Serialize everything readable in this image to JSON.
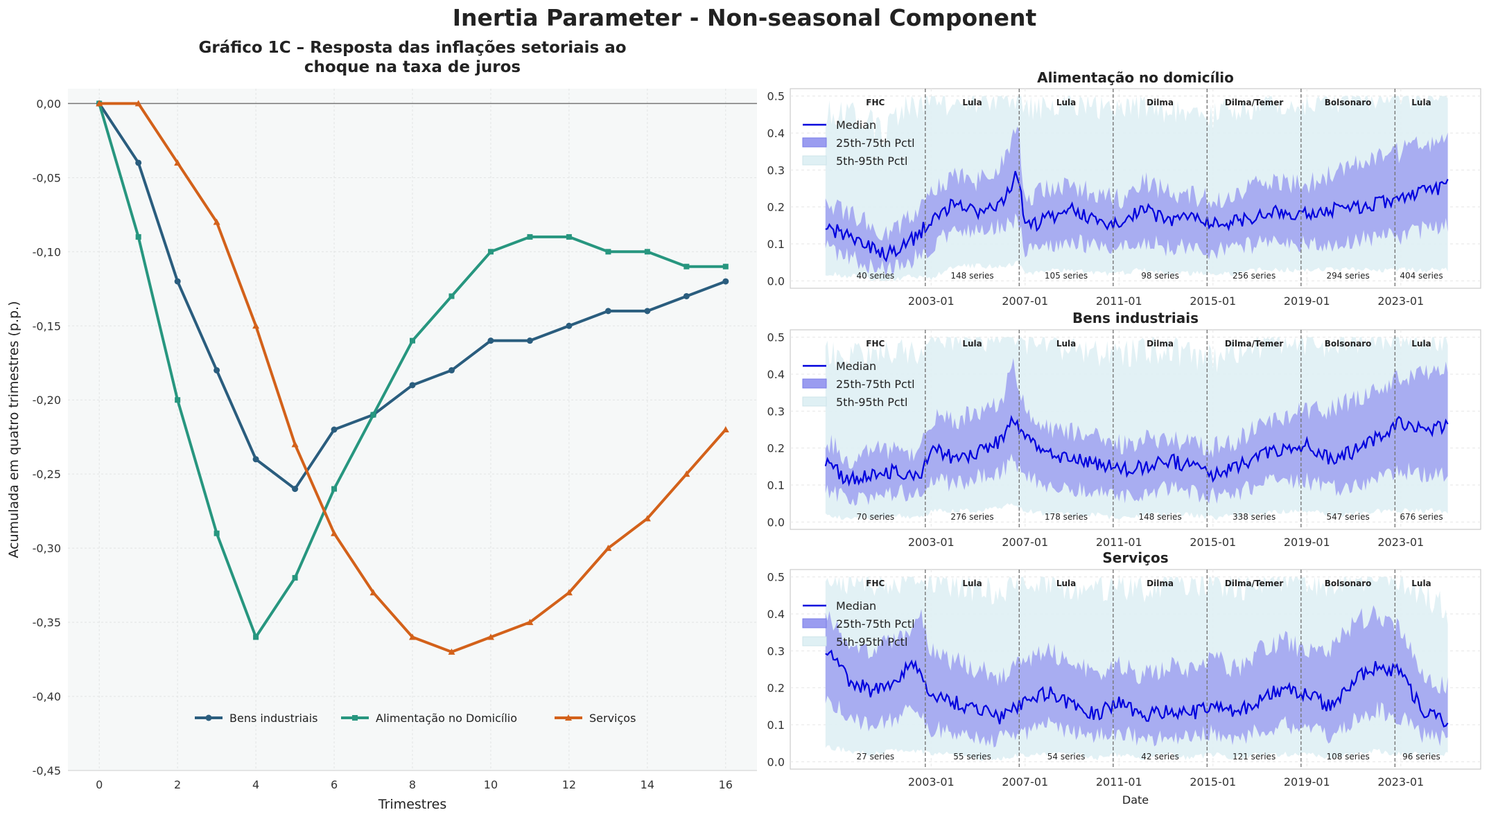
{
  "main_title": "Inertia Parameter - Non-seasonal Component",
  "colors": {
    "bens": "#2a5d7e",
    "alimentacao": "#27967f",
    "servicos": "#d3611a",
    "median": "#0000dd",
    "iqr": "#9a9cf0",
    "band90": "#dff0f4",
    "panel_bg": "#f6f8f8",
    "vline": "#777777"
  },
  "chart_data": [
    {
      "type": "line",
      "title": "Gráfico 1C – Resposta das inflações setoriais ao\nchoque na taxa de juros",
      "xlabel": "Trimestres",
      "ylabel": "Acumulada em quatro trimestres (p.p.)",
      "xlim": [
        -0.8,
        16.8
      ],
      "ylim": [
        -0.45,
        0.01
      ],
      "xticks": [
        0,
        2,
        4,
        6,
        8,
        10,
        12,
        14,
        16
      ],
      "yticks": [
        "0,00",
        "-0,05",
        "-0,10",
        "-0,15",
        "-0,20",
        "-0,25",
        "-0,30",
        "-0,35",
        "-0,40",
        "-0,45"
      ],
      "ytick_values": [
        0,
        -0.05,
        -0.1,
        -0.15,
        -0.2,
        -0.25,
        -0.3,
        -0.35,
        -0.4,
        -0.45
      ],
      "legend_position": "lower-center",
      "grid": true,
      "x": [
        0,
        1,
        2,
        3,
        4,
        5,
        6,
        7,
        8,
        9,
        10,
        11,
        12,
        13,
        14,
        15,
        16
      ],
      "series": [
        {
          "name": "Bens industriais",
          "color_key": "bens",
          "marker": "circle",
          "values": [
            0,
            -0.04,
            -0.12,
            -0.18,
            -0.24,
            -0.26,
            -0.22,
            -0.21,
            -0.19,
            -0.18,
            -0.16,
            -0.16,
            -0.15,
            -0.14,
            -0.14,
            -0.13,
            -0.12
          ]
        },
        {
          "name": "Alimentação no Domicílio",
          "color_key": "alimentacao",
          "marker": "square",
          "values": [
            0,
            -0.09,
            -0.2,
            -0.29,
            -0.36,
            -0.32,
            -0.26,
            -0.21,
            -0.16,
            -0.13,
            -0.1,
            -0.09,
            -0.09,
            -0.1,
            -0.1,
            -0.11,
            -0.11
          ]
        },
        {
          "name": "Serviços",
          "color_key": "servicos",
          "marker": "triangle",
          "values": [
            0,
            0,
            -0.04,
            -0.08,
            -0.15,
            -0.23,
            -0.29,
            -0.33,
            -0.36,
            -0.37,
            -0.36,
            -0.35,
            -0.33,
            -0.3,
            -0.28,
            -0.25,
            -0.22
          ]
        }
      ]
    },
    {
      "type": "area",
      "panel": "top",
      "title": "Alimentação no domicílio",
      "xlabel": "",
      "xlim": [
        1997.0,
        2026.4
      ],
      "ylim": [
        -0.02,
        0.52
      ],
      "yticks": [
        0.0,
        0.1,
        0.2,
        0.3,
        0.4,
        0.5
      ],
      "xticks": [
        "2003-01",
        "2007-01",
        "2011-01",
        "2015-01",
        "2019-01",
        "2023-01"
      ],
      "xtick_values": [
        2003.0,
        2007.0,
        2011.0,
        2015.0,
        2019.0,
        2023.0
      ],
      "era_boundaries": [
        2002.75,
        2006.75,
        2010.75,
        2014.75,
        2018.75,
        2022.75
      ],
      "eras": [
        "FHC",
        "Lula",
        "Lula",
        "Dilma",
        "Dilma/Temer",
        "Bolsonaro",
        "Lula"
      ],
      "era_counts": [
        "40 series",
        "148 series",
        "105 series",
        "98 series",
        "256 series",
        "294 series",
        "404 series"
      ],
      "legend": [
        "Median",
        "25th-75th Pctl",
        "5th-95th Pctl"
      ],
      "x": [
        1998.5,
        2000.0,
        2001.0,
        2002.0,
        2003.0,
        2004.0,
        2005.0,
        2006.0,
        2006.7,
        2007.0,
        2008.0,
        2009.0,
        2010.0,
        2011.0,
        2012.0,
        2013.0,
        2014.0,
        2015.0,
        2016.0,
        2017.0,
        2018.0,
        2019.0,
        2020.0,
        2021.0,
        2022.0,
        2023.0,
        2024.0,
        2025.0
      ],
      "median": [
        0.15,
        0.1,
        0.07,
        0.1,
        0.16,
        0.21,
        0.19,
        0.21,
        0.29,
        0.14,
        0.17,
        0.19,
        0.16,
        0.15,
        0.2,
        0.16,
        0.17,
        0.15,
        0.16,
        0.18,
        0.19,
        0.18,
        0.19,
        0.2,
        0.21,
        0.22,
        0.24,
        0.26
      ],
      "p25": [
        0.09,
        0.05,
        0.03,
        0.05,
        0.09,
        0.14,
        0.13,
        0.15,
        0.17,
        0.08,
        0.1,
        0.11,
        0.09,
        0.08,
        0.11,
        0.09,
        0.09,
        0.08,
        0.09,
        0.1,
        0.1,
        0.1,
        0.1,
        0.11,
        0.12,
        0.12,
        0.14,
        0.15
      ],
      "p75": [
        0.21,
        0.17,
        0.12,
        0.17,
        0.24,
        0.28,
        0.27,
        0.31,
        0.42,
        0.22,
        0.25,
        0.26,
        0.23,
        0.22,
        0.27,
        0.24,
        0.23,
        0.22,
        0.24,
        0.26,
        0.27,
        0.26,
        0.29,
        0.32,
        0.33,
        0.35,
        0.37,
        0.4
      ],
      "p05": [
        0.02,
        0.01,
        0.0,
        0.01,
        0.01,
        0.04,
        0.04,
        0.04,
        0.05,
        0.02,
        0.03,
        0.03,
        0.02,
        0.02,
        0.03,
        0.02,
        0.02,
        0.02,
        0.02,
        0.03,
        0.03,
        0.03,
        0.03,
        0.03,
        0.03,
        0.03,
        0.03,
        0.03
      ],
      "p95": [
        0.45,
        0.45,
        0.4,
        0.47,
        0.48,
        0.49,
        0.49,
        0.5,
        0.5,
        0.47,
        0.48,
        0.49,
        0.47,
        0.45,
        0.48,
        0.46,
        0.45,
        0.44,
        0.47,
        0.48,
        0.48,
        0.48,
        0.49,
        0.5,
        0.5,
        0.5,
        0.5,
        0.5
      ]
    },
    {
      "type": "area",
      "panel": "middle",
      "title": "Bens industriais",
      "xlabel": "",
      "xlim": [
        1997.0,
        2026.4
      ],
      "ylim": [
        -0.02,
        0.52
      ],
      "yticks": [
        0.0,
        0.1,
        0.2,
        0.3,
        0.4,
        0.5
      ],
      "xticks": [
        "2003-01",
        "2007-01",
        "2011-01",
        "2015-01",
        "2019-01",
        "2023-01"
      ],
      "xtick_values": [
        2003.0,
        2007.0,
        2011.0,
        2015.0,
        2019.0,
        2023.0
      ],
      "era_boundaries": [
        2002.75,
        2006.75,
        2010.75,
        2014.75,
        2018.75,
        2022.75
      ],
      "eras": [
        "FHC",
        "Lula",
        "Lula",
        "Dilma",
        "Dilma/Temer",
        "Bolsonaro",
        "Lula"
      ],
      "era_counts": [
        "70 series",
        "276 series",
        "178 series",
        "148 series",
        "338 series",
        "547 series",
        "676 series"
      ],
      "legend": [
        "Median",
        "25th-75th Pctl",
        "5th-95th Pctl"
      ],
      "x": [
        1998.5,
        1999.5,
        2000.5,
        2001.5,
        2002.5,
        2003.0,
        2004.0,
        2005.0,
        2006.0,
        2006.5,
        2007.0,
        2008.0,
        2009.0,
        2010.0,
        2011.0,
        2012.0,
        2013.0,
        2014.0,
        2015.0,
        2016.0,
        2017.0,
        2018.0,
        2019.0,
        2020.0,
        2021.0,
        2022.0,
        2023.0,
        2024.0,
        2025.0
      ],
      "median": [
        0.16,
        0.11,
        0.13,
        0.14,
        0.12,
        0.2,
        0.17,
        0.19,
        0.22,
        0.28,
        0.23,
        0.19,
        0.17,
        0.16,
        0.14,
        0.15,
        0.17,
        0.15,
        0.13,
        0.15,
        0.18,
        0.2,
        0.21,
        0.17,
        0.19,
        0.23,
        0.27,
        0.25,
        0.26
      ],
      "p25": [
        0.09,
        0.06,
        0.07,
        0.08,
        0.07,
        0.12,
        0.1,
        0.12,
        0.14,
        0.17,
        0.13,
        0.1,
        0.09,
        0.08,
        0.07,
        0.08,
        0.09,
        0.08,
        0.07,
        0.08,
        0.1,
        0.11,
        0.11,
        0.09,
        0.1,
        0.12,
        0.14,
        0.13,
        0.13
      ],
      "p75": [
        0.22,
        0.17,
        0.19,
        0.2,
        0.18,
        0.28,
        0.27,
        0.3,
        0.33,
        0.42,
        0.3,
        0.26,
        0.24,
        0.23,
        0.21,
        0.22,
        0.23,
        0.21,
        0.2,
        0.22,
        0.26,
        0.28,
        0.3,
        0.3,
        0.33,
        0.36,
        0.39,
        0.4,
        0.42
      ],
      "p05": [
        0.02,
        0.01,
        0.01,
        0.02,
        0.01,
        0.03,
        0.03,
        0.03,
        0.04,
        0.05,
        0.03,
        0.02,
        0.02,
        0.02,
        0.01,
        0.02,
        0.02,
        0.02,
        0.01,
        0.02,
        0.02,
        0.03,
        0.03,
        0.02,
        0.02,
        0.03,
        0.03,
        0.03,
        0.03
      ],
      "p95": [
        0.46,
        0.44,
        0.46,
        0.47,
        0.45,
        0.49,
        0.5,
        0.5,
        0.5,
        0.5,
        0.49,
        0.48,
        0.47,
        0.46,
        0.45,
        0.46,
        0.47,
        0.45,
        0.44,
        0.46,
        0.48,
        0.49,
        0.49,
        0.48,
        0.49,
        0.5,
        0.5,
        0.5,
        0.5
      ]
    },
    {
      "type": "area",
      "panel": "bottom",
      "title": "Serviços",
      "xlabel": "Date",
      "xlim": [
        1997.0,
        2026.4
      ],
      "ylim": [
        -0.02,
        0.52
      ],
      "yticks": [
        0.0,
        0.1,
        0.2,
        0.3,
        0.4,
        0.5
      ],
      "xticks": [
        "2003-01",
        "2007-01",
        "2011-01",
        "2015-01",
        "2019-01",
        "2023-01"
      ],
      "xtick_values": [
        2003.0,
        2007.0,
        2011.0,
        2015.0,
        2019.0,
        2023.0
      ],
      "era_boundaries": [
        2002.75,
        2006.75,
        2010.75,
        2014.75,
        2018.75,
        2022.75
      ],
      "eras": [
        "FHC",
        "Lula",
        "Lula",
        "Dilma",
        "Dilma/Temer",
        "Bolsonaro",
        "Lula"
      ],
      "era_counts": [
        "27 series",
        "55 series",
        "54 series",
        "42 series",
        "121 series",
        "108 series",
        "96 series"
      ],
      "legend": [
        "Median",
        "25th-75th Pctl",
        "5th-95th Pctl"
      ],
      "x": [
        1998.5,
        1999.5,
        2000.5,
        2001.5,
        2002.0,
        2002.5,
        2003.0,
        2004.0,
        2005.0,
        2006.0,
        2007.0,
        2008.0,
        2009.0,
        2010.0,
        2011.0,
        2012.0,
        2013.0,
        2014.0,
        2015.0,
        2016.0,
        2017.0,
        2018.0,
        2019.0,
        2020.0,
        2021.0,
        2022.0,
        2023.0,
        2024.0,
        2025.0
      ],
      "median": [
        0.3,
        0.22,
        0.19,
        0.22,
        0.25,
        0.26,
        0.18,
        0.16,
        0.14,
        0.12,
        0.16,
        0.19,
        0.15,
        0.13,
        0.16,
        0.12,
        0.14,
        0.13,
        0.15,
        0.13,
        0.17,
        0.2,
        0.18,
        0.15,
        0.22,
        0.26,
        0.24,
        0.13,
        0.11
      ],
      "p25": [
        0.18,
        0.12,
        0.1,
        0.12,
        0.14,
        0.13,
        0.09,
        0.08,
        0.07,
        0.06,
        0.08,
        0.1,
        0.08,
        0.07,
        0.08,
        0.06,
        0.07,
        0.06,
        0.08,
        0.06,
        0.09,
        0.1,
        0.09,
        0.07,
        0.11,
        0.14,
        0.12,
        0.07,
        0.06
      ],
      "p75": [
        0.4,
        0.33,
        0.3,
        0.33,
        0.36,
        0.4,
        0.3,
        0.27,
        0.25,
        0.23,
        0.27,
        0.3,
        0.26,
        0.24,
        0.27,
        0.23,
        0.26,
        0.25,
        0.28,
        0.25,
        0.3,
        0.33,
        0.3,
        0.3,
        0.38,
        0.4,
        0.36,
        0.22,
        0.2
      ],
      "p05": [
        0.04,
        0.03,
        0.02,
        0.03,
        0.03,
        0.03,
        0.02,
        0.02,
        0.01,
        0.01,
        0.02,
        0.02,
        0.02,
        0.01,
        0.02,
        0.01,
        0.02,
        0.01,
        0.02,
        0.01,
        0.02,
        0.02,
        0.02,
        0.01,
        0.02,
        0.03,
        0.02,
        0.02,
        0.02
      ],
      "p95": [
        0.5,
        0.49,
        0.48,
        0.49,
        0.5,
        0.5,
        0.49,
        0.48,
        0.47,
        0.46,
        0.48,
        0.49,
        0.47,
        0.46,
        0.48,
        0.47,
        0.48,
        0.47,
        0.49,
        0.47,
        0.49,
        0.5,
        0.49,
        0.48,
        0.5,
        0.5,
        0.49,
        0.45,
        0.41
      ]
    }
  ]
}
